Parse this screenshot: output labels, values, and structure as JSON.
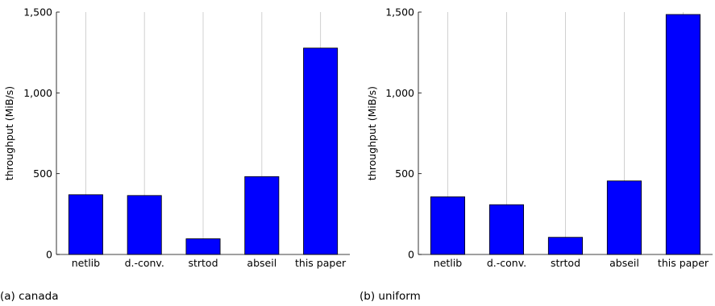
{
  "colors": {
    "bar_fill": "#0000ff",
    "bar_stroke": "#000000",
    "grid": "#d0d0d0",
    "axis": "#000000"
  },
  "chart_data": [
    {
      "type": "bar",
      "caption": "(a) canada",
      "ylabel": "throughput (MiB/s)",
      "ylim": [
        0,
        1500
      ],
      "yticks": [
        0,
        500,
        1000,
        1500
      ],
      "ytick_labels": [
        "0",
        "500",
        "1,000",
        "1,500"
      ],
      "grid": true,
      "categories": [
        "netlib",
        "d.-conv.",
        "strtod",
        "abseil",
        "this paper"
      ],
      "values": [
        370,
        365,
        97,
        482,
        1277
      ]
    },
    {
      "type": "bar",
      "caption": "(b) uniform",
      "ylabel": "throughput (MiB/s)",
      "ylim": [
        0,
        1500
      ],
      "yticks": [
        0,
        500,
        1000,
        1500
      ],
      "ytick_labels": [
        "0",
        "500",
        "1,000",
        "1,500"
      ],
      "grid": true,
      "categories": [
        "netlib",
        "d.-conv.",
        "strtod",
        "abseil",
        "this paper"
      ],
      "values": [
        357,
        308,
        106,
        455,
        1485
      ]
    }
  ]
}
